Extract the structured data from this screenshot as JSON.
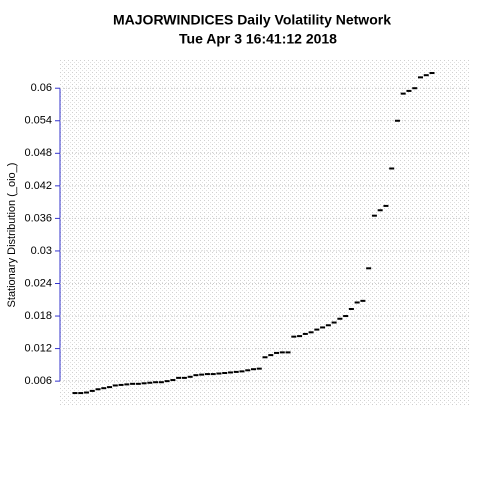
{
  "chart_data": {
    "type": "scatter",
    "title": "MAJORWINDICES  Daily Volatility Network",
    "subtitle": "Tue Apr  3 16:41:12 2018",
    "y_label": "Stationary Distribution (_oio_)",
    "categories": [
      null,
      null,
      null,
      null,
      null,
      null,
      null,
      null,
      null,
      null,
      null,
      null,
      null,
      null,
      null,
      null,
      null,
      null,
      null,
      null,
      null,
      null,
      null,
      null,
      null,
      null,
      null,
      null,
      null,
      null,
      null,
      null,
      null,
      null,
      null,
      null,
      null,
      null,
      null,
      null,
      null,
      null,
      null,
      null,
      null,
      null,
      null,
      null,
      null,
      null,
      null,
      null,
      null,
      null,
      null,
      null,
      null,
      null,
      null,
      null,
      null,
      null,
      null
    ],
    "values": [
      0.0038,
      0.0038,
      0.0039,
      0.0042,
      0.0045,
      0.0047,
      0.0049,
      0.0052,
      0.0053,
      0.0054,
      0.0055,
      0.0055,
      0.0056,
      0.0057,
      0.0058,
      0.0058,
      0.006,
      0.0062,
      0.0066,
      0.0066,
      0.0068,
      0.0071,
      0.0072,
      0.0073,
      0.0073,
      0.0074,
      0.0075,
      0.0076,
      0.0077,
      0.0078,
      0.008,
      0.0082,
      0.0083,
      0.0104,
      0.0108,
      0.0112,
      0.0113,
      0.0113,
      0.0142,
      0.0143,
      0.0147,
      0.015,
      0.0155,
      0.0159,
      0.0163,
      0.0168,
      0.0175,
      0.018,
      0.0193,
      0.0205,
      0.0208,
      0.0268,
      0.0365,
      0.0375,
      0.0383,
      0.0452,
      0.054,
      0.059,
      0.0595,
      0.06,
      0.062,
      0.0624,
      0.0628
    ],
    "color": "#000000",
    "axis_color": "#3333cc",
    "ylim": [
      0.0016,
      0.0652
    ],
    "yticks": [
      0.006,
      0.012,
      0.018,
      0.024,
      0.03,
      0.036,
      0.042,
      0.048,
      0.054,
      0.06
    ],
    "grid": true
  }
}
